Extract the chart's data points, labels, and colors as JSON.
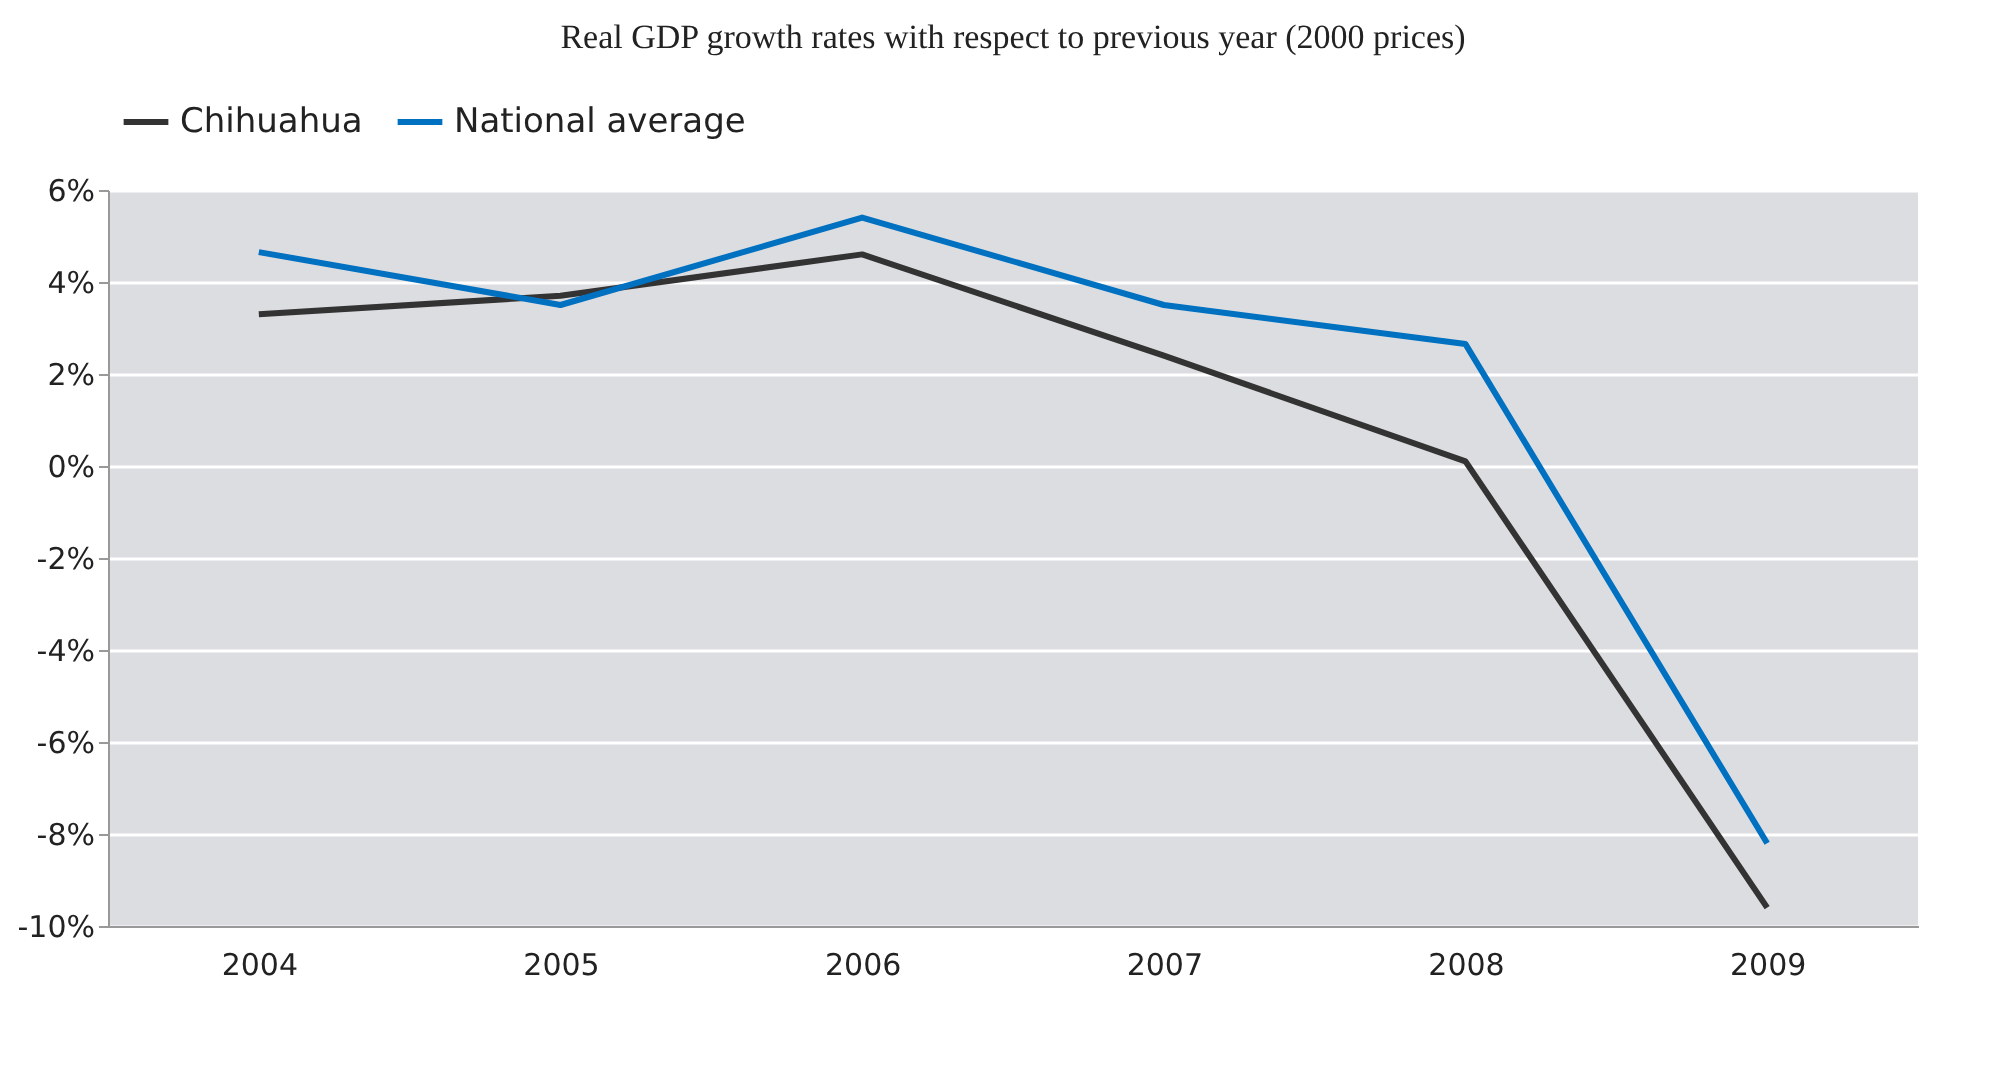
{
  "chart_data": {
    "type": "line",
    "title": "Real GDP growth rates with respect to previous year (2000 prices)",
    "categories": [
      "2004",
      "2005",
      "2006",
      "2007",
      "2008",
      "2009"
    ],
    "series": [
      {
        "name": "Chihuahua",
        "color": "#333333",
        "values": [
          3.3,
          3.7,
          4.6,
          2.4,
          0.1,
          -9.6
        ]
      },
      {
        "name": "National average",
        "color": "#0070c0",
        "values": [
          4.65,
          3.5,
          5.4,
          3.5,
          2.65,
          -8.2
        ]
      }
    ],
    "ylim": [
      -10,
      6
    ],
    "yticks": [
      {
        "value": -10,
        "label": "-10%"
      },
      {
        "value": -8,
        "label": "-8%"
      },
      {
        "value": -6,
        "label": "-6%"
      },
      {
        "value": -4,
        "label": "-4%"
      },
      {
        "value": -2,
        "label": "-2%"
      },
      {
        "value": 0,
        "label": "0%"
      },
      {
        "value": 2,
        "label": "2%"
      },
      {
        "value": 4,
        "label": "4%"
      },
      {
        "value": 6,
        "label": "6%"
      }
    ],
    "grid": "y",
    "legend": "top",
    "marker": "none",
    "line_style": "solid"
  }
}
